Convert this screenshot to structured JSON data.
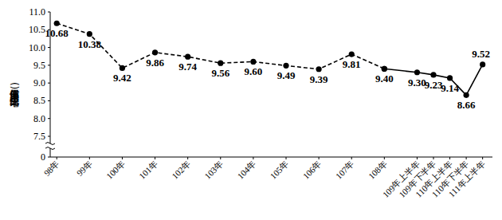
{
  "chart_data": {
    "type": "line",
    "y_label": "低度使用(用電)住宅比率(%)",
    "x": [
      98,
      99,
      100,
      101,
      102,
      103,
      104,
      105,
      106,
      107,
      108,
      109,
      109.5,
      110,
      110.5,
      111
    ],
    "xticks": [
      {
        "value": 98,
        "label": "98年"
      },
      {
        "value": 99,
        "label": "99年"
      },
      {
        "value": 100,
        "label": "100年"
      },
      {
        "value": 101,
        "label": "101年"
      },
      {
        "value": 102,
        "label": "102年"
      },
      {
        "value": 103,
        "label": "103年"
      },
      {
        "value": 104,
        "label": "104年"
      },
      {
        "value": 105,
        "label": "105年"
      },
      {
        "value": 106,
        "label": "106年"
      },
      {
        "value": 107,
        "label": "107年"
      },
      {
        "value": 108,
        "label": "108年"
      },
      {
        "value": 109,
        "label": "109年上半年"
      },
      {
        "value": 109.5,
        "label": "109年下半年"
      },
      {
        "value": 110,
        "label": "110年上半年"
      },
      {
        "value": 110.5,
        "label": "110年下半年"
      },
      {
        "value": 111,
        "label": "111年上半年"
      }
    ],
    "xlim": [
      97.8,
      111.3
    ],
    "ylim": [
      0,
      11
    ],
    "yticks": [
      0,
      7.5,
      {
        "value": 8,
        "label": "8.0"
      },
      8.5,
      {
        "value": 9,
        "label": "9.0"
      },
      9.5,
      {
        "value": 10,
        "label": "10.0"
      },
      10.5,
      {
        "value": 11,
        "label": "11.0"
      }
    ],
    "grid": false,
    "data_labels": true,
    "series": [
      {
        "color": "#000000",
        "line_style": "dashed",
        "marker": "circle",
        "values": [
          10.68,
          10.38,
          9.42,
          9.86,
          9.74,
          9.56,
          9.6,
          9.49,
          9.39,
          9.81,
          9.4,
          null,
          null,
          null,
          null,
          null
        ],
        "value_labels": [
          "10.68",
          "10.38",
          "9.42",
          "9.86",
          "9.74",
          "9.56",
          "9.60",
          "9.49",
          "9.39",
          "9.81",
          "9.40",
          null,
          null,
          null,
          null,
          null
        ]
      },
      {
        "color": "#000000",
        "line_style": "solid",
        "marker": "circle",
        "values": [
          null,
          null,
          null,
          null,
          null,
          null,
          null,
          null,
          null,
          null,
          9.4,
          9.3,
          9.23,
          9.14,
          8.66,
          9.52
        ],
        "value_labels": [
          null,
          null,
          null,
          null,
          null,
          null,
          null,
          null,
          null,
          null,
          "9.40",
          "9.30",
          "9.23",
          "9.14",
          "8.66",
          "9.52"
        ]
      }
    ]
  }
}
